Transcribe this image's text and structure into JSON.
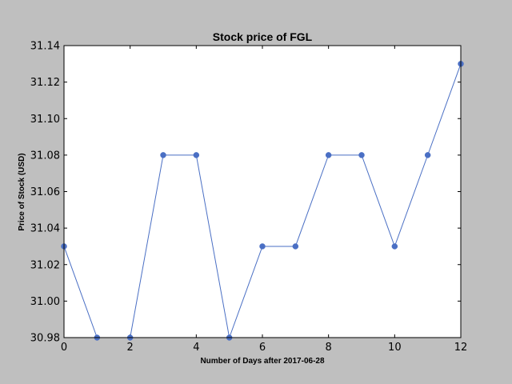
{
  "chart_data": {
    "type": "line",
    "title": "Stock price of FGL",
    "xlabel": "Number of Days after 2017-06-28",
    "ylabel": "Price of Stock (USD)",
    "xlim": [
      0,
      12
    ],
    "ylim": [
      30.98,
      31.14
    ],
    "xticks": [
      "0",
      "2",
      "4",
      "6",
      "8",
      "10",
      "12"
    ],
    "xtick_values": [
      0,
      2,
      4,
      6,
      8,
      10,
      12
    ],
    "yticks": [
      "30.98",
      "31.00",
      "31.02",
      "31.04",
      "31.06",
      "31.08",
      "31.10",
      "31.12",
      "31.14"
    ],
    "ytick_values": [
      30.98,
      31.0,
      31.02,
      31.04,
      31.06,
      31.08,
      31.1,
      31.12,
      31.14
    ],
    "grid": false,
    "legend": "none",
    "series": [
      {
        "color": "#4a6fc4",
        "marker": "circle",
        "x": [
          0,
          1,
          2,
          3,
          4,
          5,
          6,
          7,
          8,
          9,
          10,
          11,
          12
        ],
        "y": [
          31.03,
          30.98,
          30.98,
          31.08,
          31.08,
          30.98,
          31.03,
          31.03,
          31.08,
          31.08,
          31.03,
          31.08,
          31.13
        ]
      }
    ]
  }
}
